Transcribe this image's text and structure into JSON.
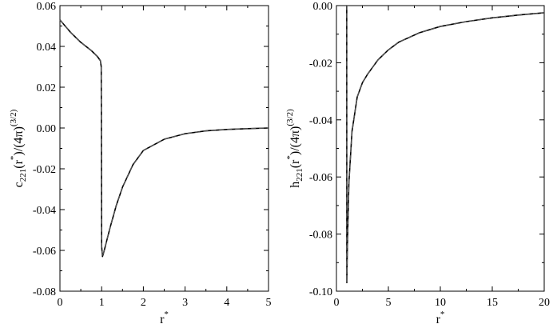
{
  "chart_data": [
    {
      "type": "line",
      "id": "left",
      "xlabel": "r",
      "xlabel_sup": "*",
      "ylabel_parts": [
        {
          "t": "c"
        },
        {
          "t": "221",
          "sub": true
        },
        {
          "t": "(r"
        },
        {
          "t": "*",
          "sup": true
        },
        {
          "t": ")/(4π)"
        },
        {
          "t": "(3/2)",
          "sup": true
        }
      ],
      "xlim": [
        0,
        5
      ],
      "ylim": [
        -0.08,
        0.06
      ],
      "xticks": [
        "0",
        "1",
        "2",
        "3",
        "4",
        "5"
      ],
      "yticks": [
        "-0.08",
        "-0.06",
        "-0.04",
        "-0.02",
        "0.00",
        "0.02",
        "0.04",
        "0.06"
      ],
      "series": [
        {
          "style": "solid",
          "x": [
            0,
            0.25,
            0.5,
            0.75,
            0.9,
            0.97,
            0.99,
            1.0,
            1.02,
            1.05,
            1.1,
            1.2,
            1.35,
            1.5,
            1.75,
            2.0,
            2.5,
            3.0,
            3.5,
            4.0,
            4.5,
            5.0
          ],
          "y": [
            0.053,
            0.047,
            0.042,
            0.038,
            0.035,
            0.033,
            0.03,
            -0.058,
            -0.063,
            -0.061,
            -0.057,
            -0.049,
            -0.038,
            -0.029,
            -0.018,
            -0.011,
            -0.0055,
            -0.0028,
            -0.0014,
            -0.0007,
            -0.0003,
            0.0
          ]
        },
        {
          "style": "dashed",
          "x": [
            0,
            0.25,
            0.5,
            0.75,
            0.9,
            0.97,
            0.99,
            1.0,
            1.02,
            1.05,
            1.1,
            1.2,
            1.35,
            1.5,
            1.75,
            2.0,
            2.5,
            3.0,
            3.5,
            4.0,
            4.5,
            5.0
          ],
          "y": [
            0.053,
            0.047,
            0.042,
            0.038,
            0.035,
            0.033,
            0.03,
            -0.058,
            -0.063,
            -0.061,
            -0.057,
            -0.049,
            -0.038,
            -0.029,
            -0.018,
            -0.011,
            -0.0055,
            -0.0028,
            -0.0014,
            -0.0007,
            -0.0003,
            0.0
          ]
        }
      ]
    },
    {
      "type": "line",
      "id": "right",
      "xlabel": "r",
      "xlabel_sup": "*",
      "ylabel_parts": [
        {
          "t": "h"
        },
        {
          "t": "221",
          "sub": true
        },
        {
          "t": "(r"
        },
        {
          "t": "*",
          "sup": true
        },
        {
          "t": ")/(4π)"
        },
        {
          "t": "(3/2)",
          "sup": true
        }
      ],
      "xlim": [
        0,
        20
      ],
      "ylim": [
        -0.1,
        0.0
      ],
      "xticks": [
        "0",
        "5",
        "10",
        "15",
        "20"
      ],
      "yticks": [
        "-0.10",
        "-0.08",
        "-0.06",
        "-0.04",
        "-0.02",
        "0.00"
      ],
      "series": [
        {
          "style": "solid",
          "x": [
            0.95,
            0.99,
            1.0,
            1.05,
            1.2,
            1.5,
            2.0,
            2.5,
            3.0,
            4.0,
            5.0,
            6.0,
            8.0,
            10.0,
            12.5,
            15.0,
            17.5,
            20.0
          ],
          "y": [
            0.0,
            0.0,
            -0.097,
            -0.085,
            -0.062,
            -0.044,
            -0.032,
            -0.027,
            -0.024,
            -0.019,
            -0.0155,
            -0.0128,
            -0.0095,
            -0.0073,
            -0.0056,
            -0.0043,
            -0.0033,
            -0.0025
          ]
        },
        {
          "style": "dashed",
          "x": [
            0.95,
            0.99,
            1.0,
            1.05,
            1.2,
            1.5,
            2.0,
            2.5,
            3.0,
            4.0,
            5.0,
            6.0,
            8.0,
            10.0,
            12.5,
            15.0,
            17.5,
            20.0
          ],
          "y": [
            0.0,
            0.0,
            -0.097,
            -0.085,
            -0.062,
            -0.044,
            -0.032,
            -0.027,
            -0.024,
            -0.019,
            -0.0155,
            -0.0128,
            -0.0095,
            -0.0073,
            -0.0056,
            -0.0043,
            -0.0033,
            -0.0025
          ]
        }
      ]
    }
  ]
}
